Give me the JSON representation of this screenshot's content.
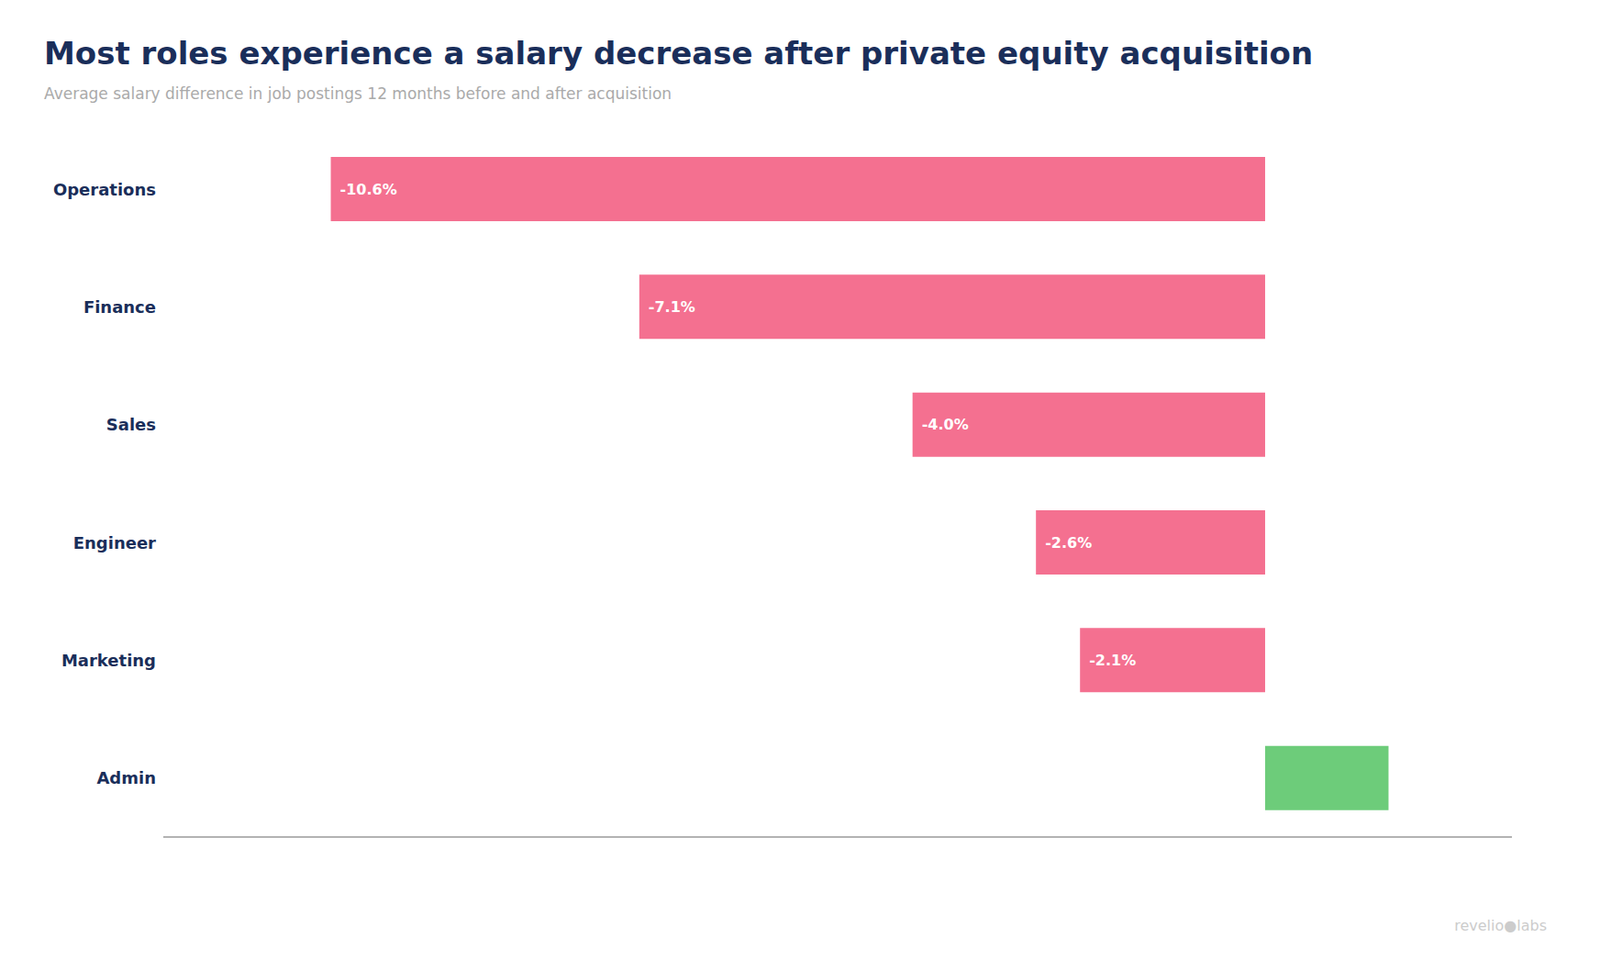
{
  "chart_data": {
    "type": "bar",
    "title": "Most roles experience a salary decrease after private equity acquisition",
    "subtitle": "Average salary difference in job postings 12 months before and after acquisition",
    "annotations": [
      "revelio●labs"
    ],
    "orientation": "horizontal",
    "categories": [
      "Operations",
      "Finance",
      "Sales",
      "Engineer",
      "Marketing",
      "Admin"
    ],
    "values": [
      -10.6,
      -7.1,
      -4.0,
      -2.6,
      -2.1,
      1.4
    ],
    "value_labels": [
      "-10.6%",
      "-7.1%",
      "-4.0%",
      "-2.6%",
      "-2.1%",
      null
    ],
    "data_labels": true,
    "colors": [
      "#f47090",
      "#f47090",
      "#f47090",
      "#f47090",
      "#f47090",
      "#6dcc7a"
    ],
    "xlim": [
      -12.5,
      2.8
    ],
    "grid": false,
    "tick_labels": "y"
  }
}
